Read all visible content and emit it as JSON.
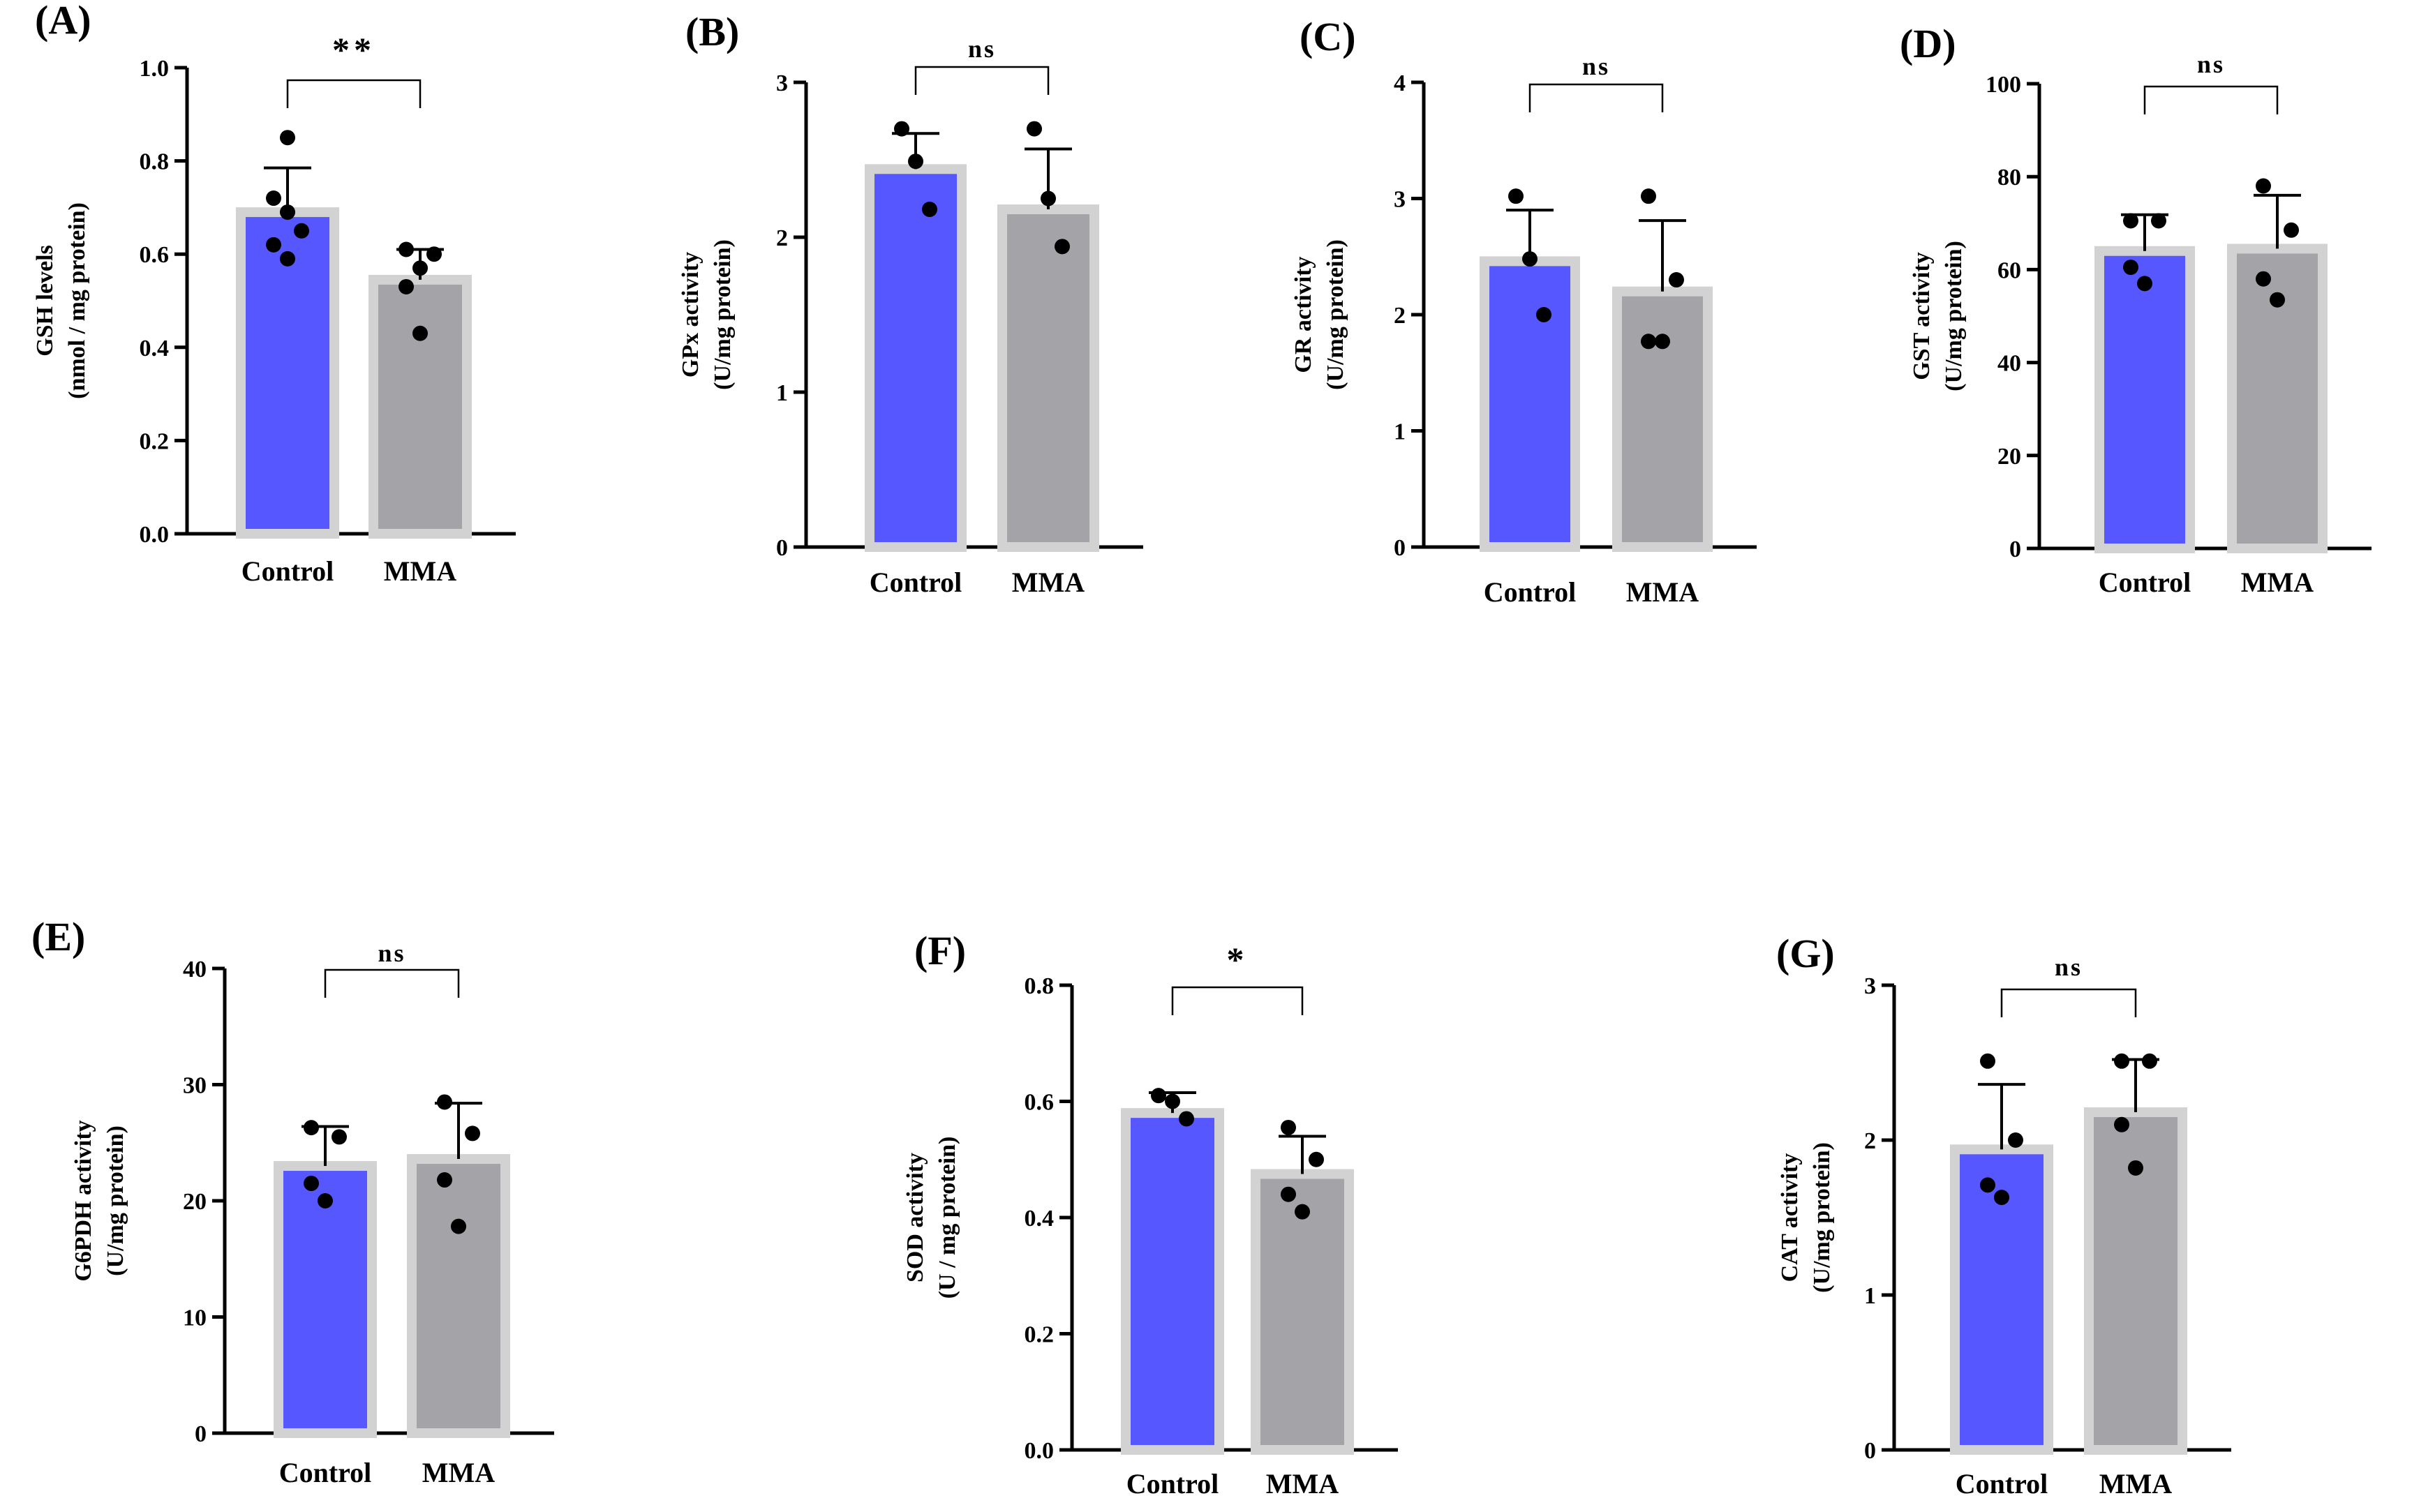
{
  "colors": {
    "control": "#5757FF",
    "mma": "#A3A3A8",
    "barEdge": "#D2D2D2",
    "axis": "#000000"
  },
  "chart_data": [
    {
      "panel": "(A)",
      "type": "bar",
      "categories": [
        "Control",
        "MMA"
      ],
      "ylabel": [
        "GSH levels",
        "(nmol / mg protein)"
      ],
      "ylim": [
        0,
        1.0
      ],
      "ticks": [
        "0.0",
        "0.2",
        "0.4",
        "0.6",
        "0.8",
        "1.0"
      ],
      "series": [
        {
          "name": "Control",
          "mean": 0.69,
          "sd": 0.095,
          "points": [
            0.85,
            0.72,
            0.69,
            0.65,
            0.62,
            0.59
          ]
        },
        {
          "name": "MMA",
          "mean": 0.545,
          "sd": 0.065,
          "points": [
            0.61,
            0.6,
            0.57,
            0.53,
            0.43
          ]
        }
      ],
      "significance": "**"
    },
    {
      "panel": "(B)",
      "type": "bar",
      "categories": [
        "Control",
        "MMA"
      ],
      "ylabel": [
        "GPx activity",
        "(U/mg protein)"
      ],
      "ylim": [
        0,
        3
      ],
      "ticks": [
        "0",
        "1",
        "2",
        "3"
      ],
      "series": [
        {
          "name": "Control",
          "mean": 2.44,
          "sd": 0.23,
          "points": [
            2.7,
            2.49,
            2.18
          ]
        },
        {
          "name": "MMA",
          "mean": 2.18,
          "sd": 0.39,
          "points": [
            2.7,
            2.25,
            1.94
          ]
        }
      ],
      "significance": "ns"
    },
    {
      "panel": "(C)",
      "type": "bar",
      "categories": [
        "Control",
        "MMA"
      ],
      "ylabel": [
        "GR activity",
        "(U/mg protein)"
      ],
      "ylim": [
        0,
        4
      ],
      "ticks": [
        "0",
        "1",
        "2",
        "3",
        "4"
      ],
      "series": [
        {
          "name": "Control",
          "mean": 2.46,
          "sd": 0.44,
          "points": [
            3.02,
            2.48,
            2.0
          ]
        },
        {
          "name": "MMA",
          "mean": 2.2,
          "sd": 0.61,
          "points": [
            3.02,
            2.3,
            1.77,
            1.77
          ]
        }
      ],
      "significance": "ns"
    },
    {
      "panel": "(D)",
      "type": "bar",
      "categories": [
        "Control",
        "MMA"
      ],
      "ylabel": [
        "GST activity",
        "(U/mg protein)"
      ],
      "ylim": [
        0,
        100
      ],
      "ticks": [
        "0",
        "20",
        "40",
        "60",
        "80",
        "100"
      ],
      "series": [
        {
          "name": "Control",
          "mean": 64,
          "sd": 7.8,
          "points": [
            70.5,
            70.5,
            60.5,
            57
          ]
        },
        {
          "name": "MMA",
          "mean": 64.5,
          "sd": 11.5,
          "points": [
            78,
            68.5,
            58,
            53.5
          ]
        }
      ],
      "significance": "ns"
    },
    {
      "panel": "(E)",
      "type": "bar",
      "categories": [
        "Control",
        "MMA"
      ],
      "ylabel": [
        "G6PDH activity",
        "(U/mg protein)"
      ],
      "ylim": [
        0,
        40
      ],
      "ticks": [
        "0",
        "10",
        "20",
        "30",
        "40"
      ],
      "series": [
        {
          "name": "Control",
          "mean": 23,
          "sd": 3.4,
          "points": [
            26.3,
            25.5,
            21.5,
            20
          ]
        },
        {
          "name": "MMA",
          "mean": 23.6,
          "sd": 4.8,
          "points": [
            28.5,
            25.8,
            21.8,
            17.8
          ]
        }
      ],
      "significance": "ns"
    },
    {
      "panel": "(F)",
      "type": "bar",
      "categories": [
        "Control",
        "MMA"
      ],
      "ylabel": [
        "SOD activity",
        "(U / mg protein)"
      ],
      "ylim": [
        0,
        0.8
      ],
      "ticks": [
        "0.0",
        "0.2",
        "0.4",
        "0.6",
        "0.8"
      ],
      "series": [
        {
          "name": "Control",
          "mean": 0.58,
          "sd": 0.035,
          "points": [
            0.61,
            0.6,
            0.57
          ]
        },
        {
          "name": "MMA",
          "mean": 0.475,
          "sd": 0.065,
          "points": [
            0.555,
            0.5,
            0.44,
            0.41
          ]
        }
      ],
      "significance": "*"
    },
    {
      "panel": "(G)",
      "type": "bar",
      "categories": [
        "Control",
        "MMA"
      ],
      "ylabel": [
        "CAT activity",
        "(U/mg protein)"
      ],
      "ylim": [
        0,
        3
      ],
      "ticks": [
        "0",
        "1",
        "2",
        "3"
      ],
      "series": [
        {
          "name": "Control",
          "mean": 1.94,
          "sd": 0.42,
          "points": [
            2.51,
            2.0,
            1.71,
            1.63
          ]
        },
        {
          "name": "MMA",
          "mean": 2.18,
          "sd": 0.34,
          "points": [
            2.51,
            2.51,
            2.1,
            1.82
          ]
        }
      ],
      "significance": "ns"
    }
  ]
}
